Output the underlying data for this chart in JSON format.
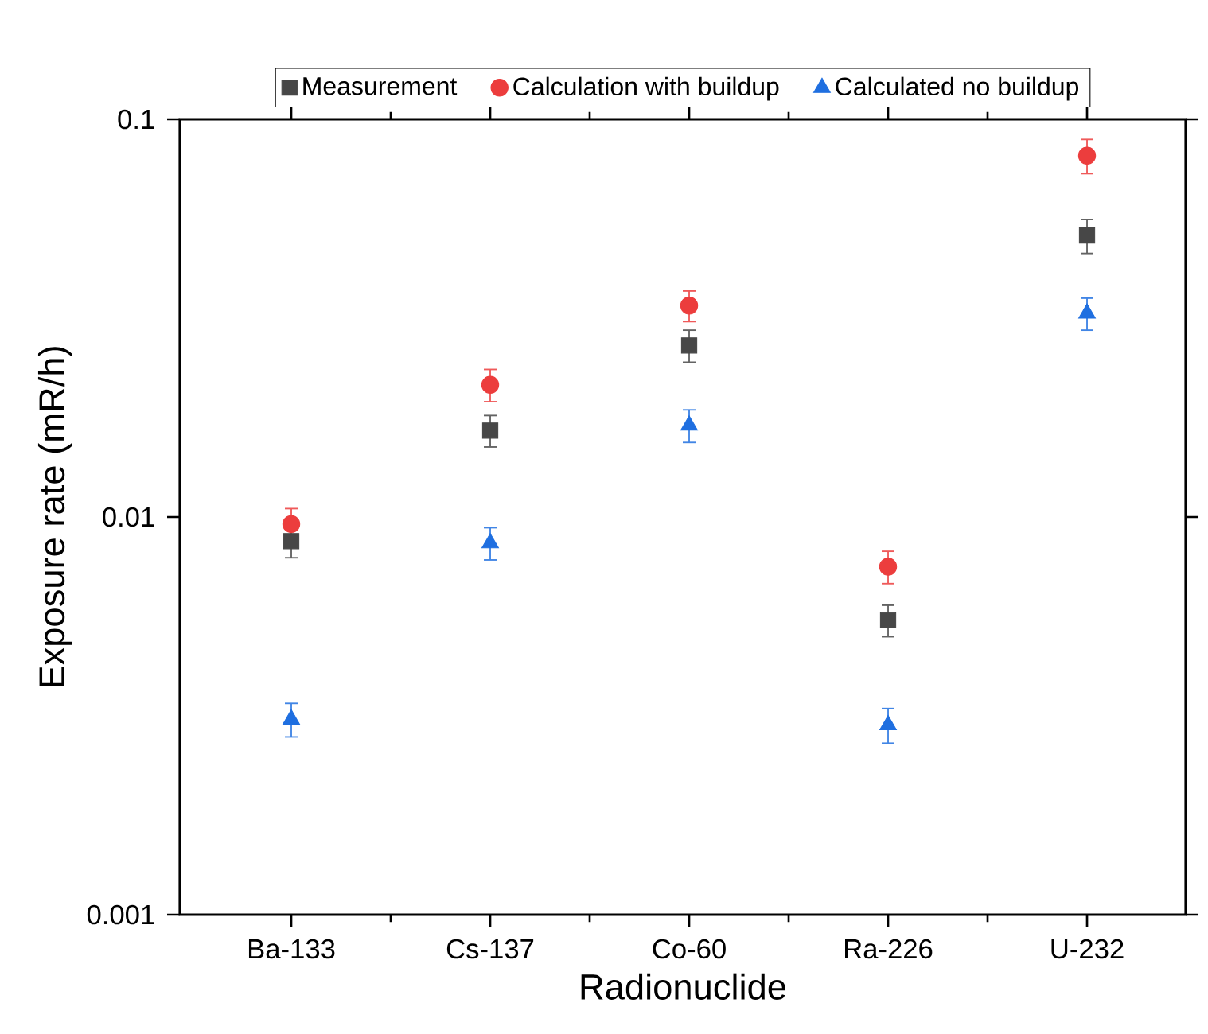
{
  "chart_data": {
    "type": "scatter",
    "xlabel": "Radionuclide",
    "ylabel": "Exposure rate (mR/h)",
    "categories": [
      "Ba-133",
      "Cs-137",
      "Co-60",
      "Ra-226",
      "U-232"
    ],
    "series": [
      {
        "name": "Measurement",
        "color": "#474747",
        "marker": "square",
        "values": [
          0.0087,
          0.0165,
          0.027,
          0.0055,
          0.051
        ],
        "errors": [
          0.0008,
          0.0015,
          0.0025,
          0.0005,
          0.005
        ]
      },
      {
        "name": "Calculation with buildup",
        "color": "#ec3d3d",
        "marker": "circle",
        "values": [
          0.0096,
          0.0215,
          0.034,
          0.0075,
          0.081
        ],
        "errors": [
          0.0009,
          0.002,
          0.003,
          0.0007,
          0.008
        ]
      },
      {
        "name": "Calculated no buildup",
        "color": "#1f6fe0",
        "marker": "triangle",
        "values": [
          0.0031,
          0.0086,
          0.017,
          0.003,
          0.0325
        ],
        "errors": [
          0.0003,
          0.0008,
          0.0016,
          0.0003,
          0.003
        ]
      }
    ],
    "log": "y",
    "ylim": [
      0.001,
      0.1
    ],
    "yticks": [
      0.001,
      0.01,
      0.1
    ],
    "grid": false,
    "legend": "top"
  }
}
